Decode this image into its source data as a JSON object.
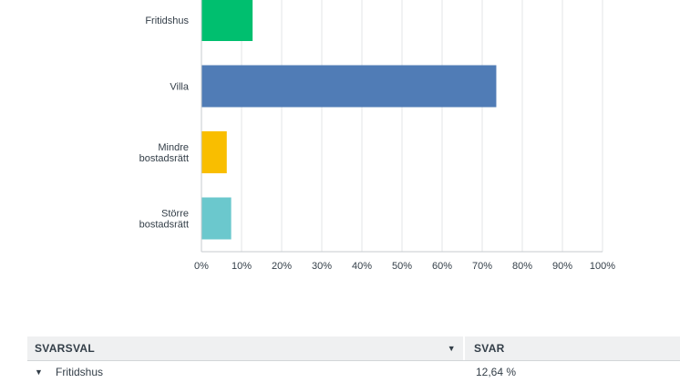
{
  "chart_data": {
    "type": "bar",
    "orientation": "horizontal",
    "categories": [
      [
        "Fritidshus"
      ],
      [
        "Villa"
      ],
      [
        "Mindre",
        "bostadsrätt"
      ],
      [
        "Större",
        "bostadsrätt"
      ]
    ],
    "values": [
      12.64,
      73.4,
      6.2,
      7.3
    ],
    "colors": [
      "#00bf6f",
      "#507cb6",
      "#f9be00",
      "#6bc8cd"
    ],
    "xlim": [
      0,
      100
    ],
    "xticks": [
      "0%",
      "10%",
      "20%",
      "30%",
      "40%",
      "50%",
      "60%",
      "70%",
      "80%",
      "90%",
      "100%"
    ],
    "grid": true
  },
  "table": {
    "col_choice": "SVARSVAL",
    "col_responses": "SVAR",
    "rows": [
      {
        "choice": "Fritidshus",
        "responses": "12,64 %"
      }
    ]
  },
  "icons": {
    "sort": "sort-caret-icon",
    "expand": "expand-caret-icon"
  }
}
